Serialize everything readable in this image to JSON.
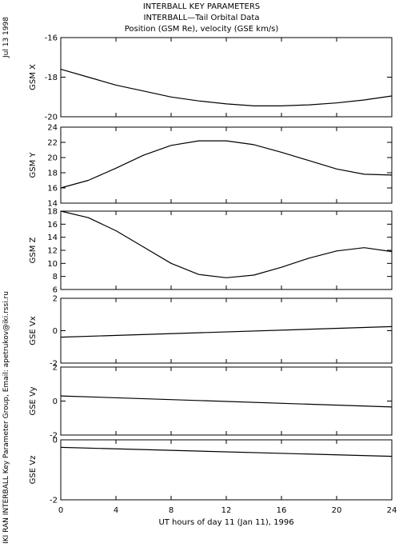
{
  "header": {
    "line1": "INTERBALL KEY PARAMETERS",
    "line2": "INTERBALL—Tail Orbital Data",
    "line3": "Position (GSM Re), velocity (GSE km/s)"
  },
  "side": {
    "date": "Jul 13 1998",
    "credit": "IKI RAN INTERBALL Key Parameter Group, Email: apetrukov@iki.rssi.ru"
  },
  "chart_data": [
    {
      "type": "line",
      "ylabel": "GSM X",
      "ylim": [
        -20,
        -16
      ],
      "yticks": [
        -20,
        -18,
        -16
      ],
      "series": [
        {
          "x": [
            0,
            2,
            4,
            6,
            8,
            10,
            12,
            14,
            16,
            18,
            20,
            22,
            24
          ],
          "values": [
            -17.6,
            -18.0,
            -18.4,
            -18.7,
            -19.0,
            -19.2,
            -19.35,
            -19.45,
            -19.45,
            -19.4,
            -19.3,
            -19.15,
            -18.95
          ]
        }
      ]
    },
    {
      "type": "line",
      "ylabel": "GSM Y",
      "ylim": [
        14,
        24
      ],
      "yticks": [
        14,
        16,
        18,
        20,
        22,
        24
      ],
      "series": [
        {
          "x": [
            0,
            2,
            4,
            6,
            8,
            10,
            12,
            14,
            16,
            18,
            20,
            22,
            24
          ],
          "values": [
            16.0,
            17.0,
            18.6,
            20.3,
            21.6,
            22.2,
            22.2,
            21.7,
            20.7,
            19.6,
            18.5,
            17.8,
            17.7
          ]
        }
      ]
    },
    {
      "type": "line",
      "ylabel": "GSM Z",
      "ylim": [
        6,
        18
      ],
      "yticks": [
        6,
        8,
        10,
        12,
        14,
        16,
        18
      ],
      "series": [
        {
          "x": [
            0,
            2,
            4,
            6,
            8,
            10,
            12,
            14,
            16,
            18,
            20,
            22,
            24
          ],
          "values": [
            18.0,
            17.0,
            15.0,
            12.5,
            10.0,
            8.3,
            7.8,
            8.2,
            9.4,
            10.8,
            11.9,
            12.4,
            11.8
          ]
        }
      ]
    },
    {
      "type": "line",
      "ylabel": "GSE Vx",
      "ylim": [
        -2,
        2
      ],
      "yticks": [
        -2,
        0,
        2
      ],
      "series": [
        {
          "x": [
            0,
            24
          ],
          "values": [
            -0.4,
            0.25
          ]
        }
      ]
    },
    {
      "type": "line",
      "ylabel": "GSE Vy",
      "ylim": [
        -2,
        2
      ],
      "yticks": [
        -2,
        0,
        2
      ],
      "series": [
        {
          "x": [
            0,
            24
          ],
          "values": [
            0.3,
            -0.35
          ]
        }
      ]
    },
    {
      "type": "line",
      "ylabel": "GSE Vz",
      "ylim": [
        -2,
        0
      ],
      "yticks": [
        -2,
        0
      ],
      "series": [
        {
          "x": [
            0,
            24
          ],
          "values": [
            -0.25,
            -0.55
          ]
        }
      ]
    }
  ],
  "xaxis": {
    "ticks": [
      "0",
      "4",
      "8",
      "12",
      "16",
      "20",
      "24"
    ],
    "tick_values": [
      0,
      4,
      8,
      12,
      16,
      20,
      24
    ],
    "range": [
      0,
      24
    ],
    "label": "UT hours of day  11 (Jan 11), 1996"
  }
}
